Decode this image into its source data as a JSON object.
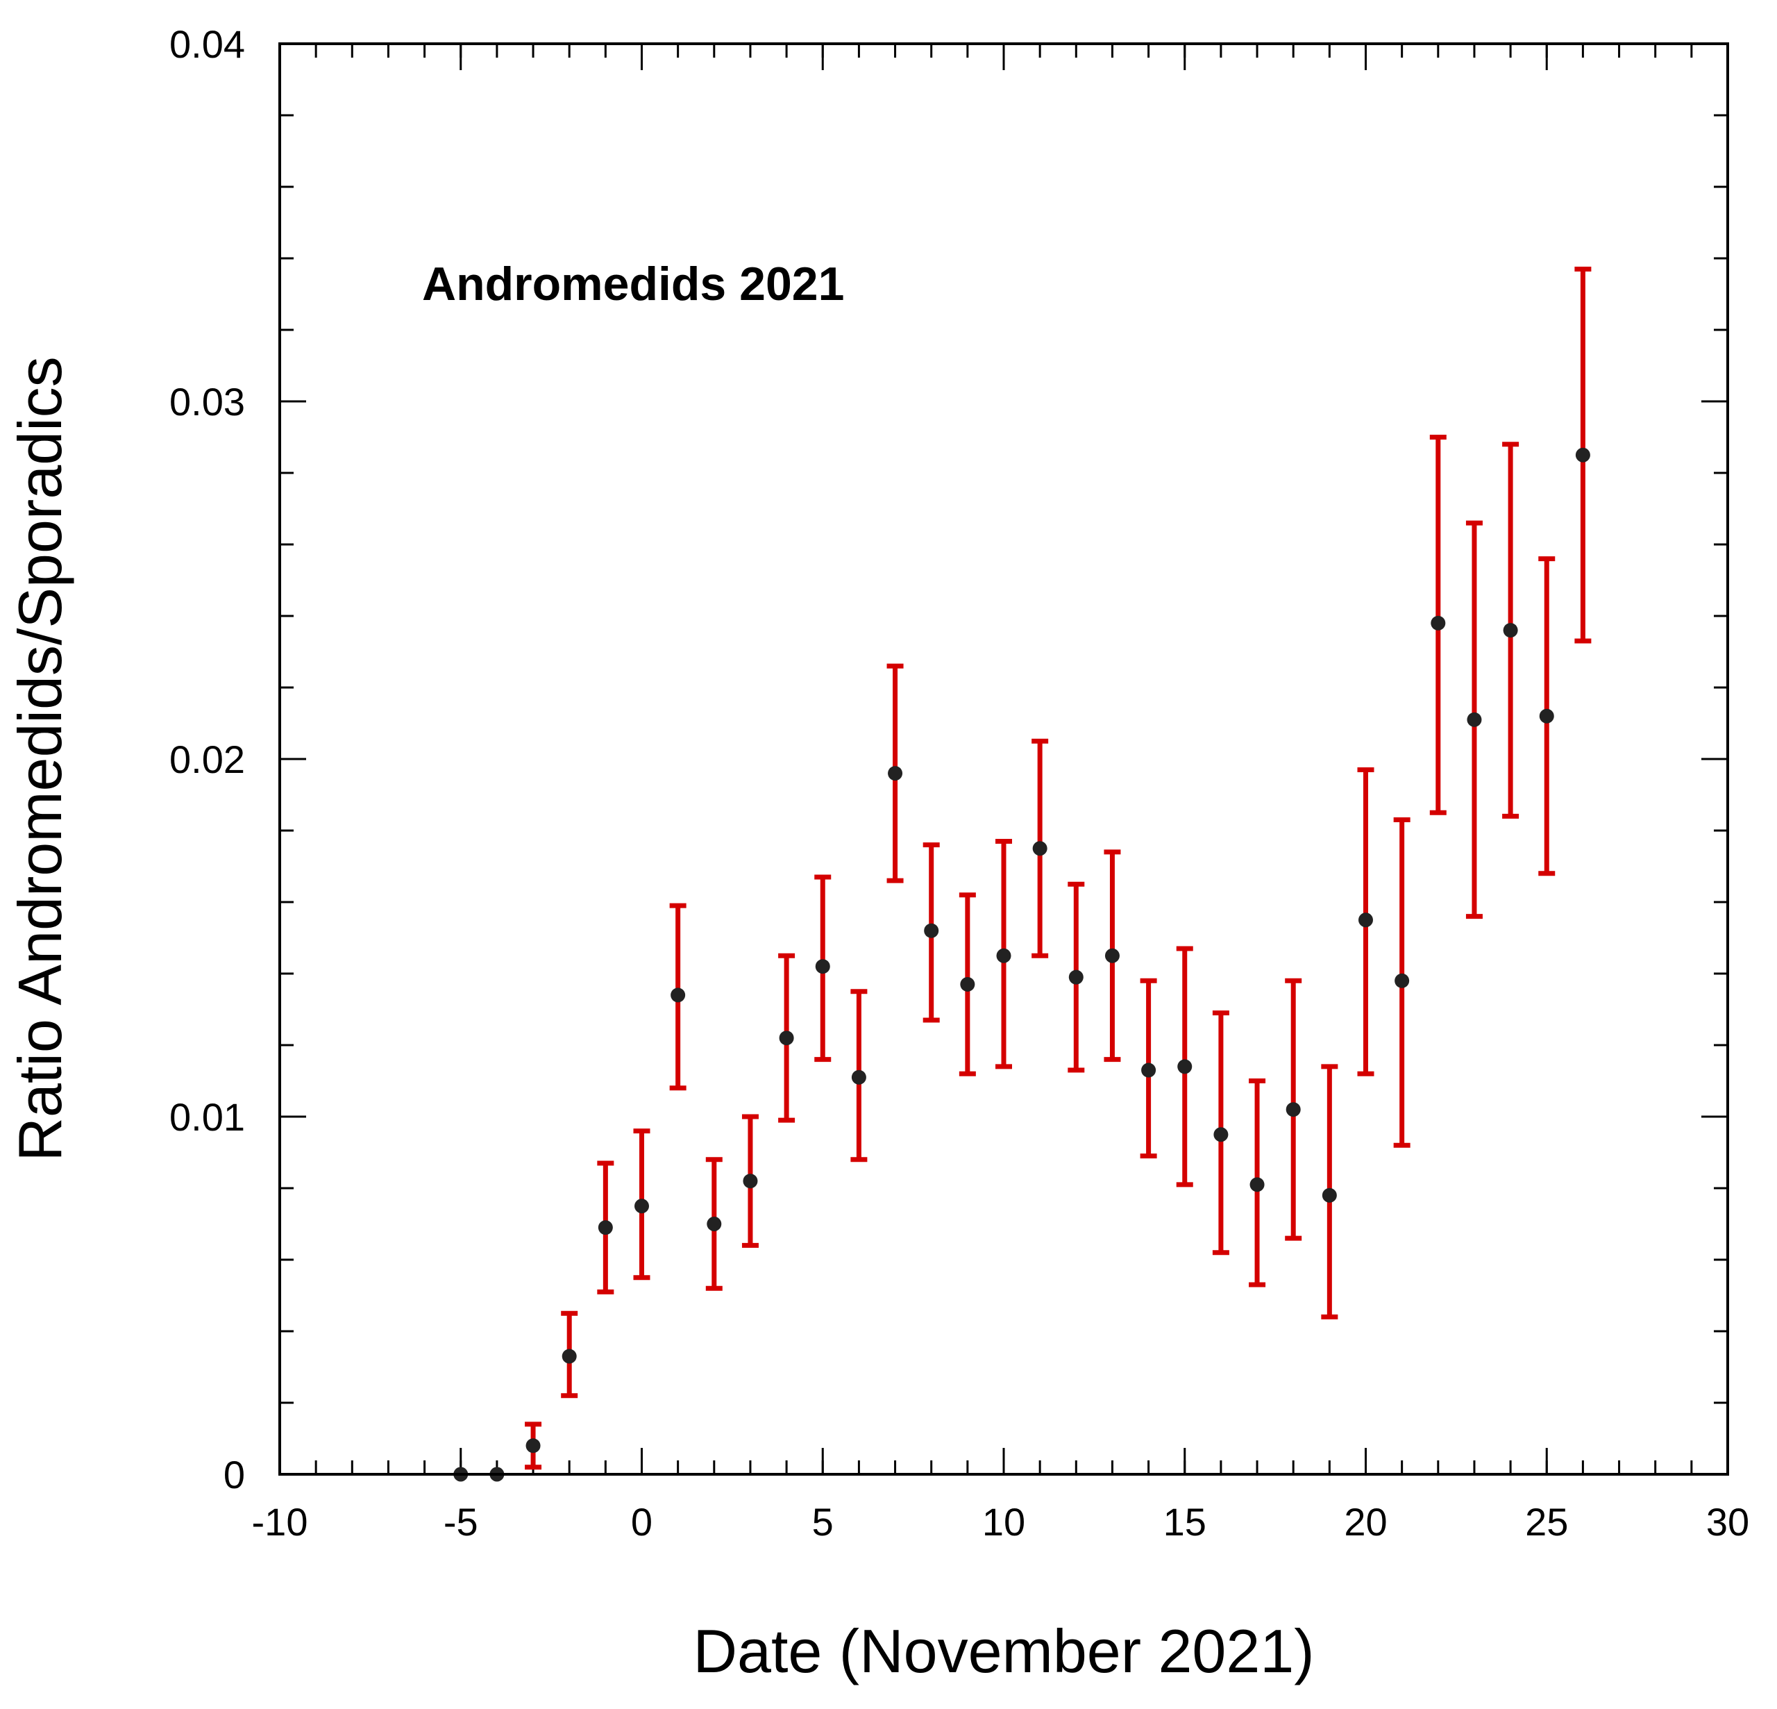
{
  "chart_data": {
    "type": "scatter",
    "title": "",
    "annotation": "Andromedids 2021",
    "xlabel": "Date (November 2021)",
    "ylabel": "Ratio Andromedids/Sporadics",
    "xlim": [
      -10,
      30
    ],
    "ylim": [
      0,
      0.04
    ],
    "x_ticks": [
      -10,
      -5,
      0,
      5,
      10,
      15,
      20,
      25,
      30
    ],
    "x_tick_labels": [
      "-10",
      "-5",
      "0",
      "5",
      "10",
      "15",
      "20",
      "25",
      "30"
    ],
    "y_ticks": [
      0,
      0.01,
      0.02,
      0.03,
      0.04
    ],
    "y_tick_labels": [
      "0",
      "0.01",
      "0.02",
      "0.03",
      "0.04"
    ],
    "x_minor_step": 1,
    "y_minor_step": 0.002,
    "grid": false,
    "legend": "none",
    "colors": {
      "marker": "#222222",
      "error_bar": "#d40000",
      "axes": "#000000"
    },
    "series": [
      {
        "points": [
          {
            "x": -5,
            "y": 0.0,
            "low": null,
            "high": null
          },
          {
            "x": -4,
            "y": 0.0,
            "low": null,
            "high": null
          },
          {
            "x": -3,
            "y": 0.0008,
            "low": 0.0002,
            "high": 0.0014
          },
          {
            "x": -2,
            "y": 0.0033,
            "low": 0.0022,
            "high": 0.0045
          },
          {
            "x": -1,
            "y": 0.0069,
            "low": 0.0051,
            "high": 0.0087
          },
          {
            "x": 0,
            "y": 0.0075,
            "low": 0.0055,
            "high": 0.0096
          },
          {
            "x": 1,
            "y": 0.0134,
            "low": 0.0108,
            "high": 0.0159
          },
          {
            "x": 2,
            "y": 0.007,
            "low": 0.0052,
            "high": 0.0088
          },
          {
            "x": 3,
            "y": 0.0082,
            "low": 0.0064,
            "high": 0.01
          },
          {
            "x": 4,
            "y": 0.0122,
            "low": 0.0099,
            "high": 0.0145
          },
          {
            "x": 5,
            "y": 0.0142,
            "low": 0.0116,
            "high": 0.0167
          },
          {
            "x": 6,
            "y": 0.0111,
            "low": 0.0088,
            "high": 0.0135
          },
          {
            "x": 7,
            "y": 0.0196,
            "low": 0.0166,
            "high": 0.0226
          },
          {
            "x": 8,
            "y": 0.0152,
            "low": 0.0127,
            "high": 0.0176
          },
          {
            "x": 9,
            "y": 0.0137,
            "low": 0.0112,
            "high": 0.0162
          },
          {
            "x": 10,
            "y": 0.0145,
            "low": 0.0114,
            "high": 0.0177
          },
          {
            "x": 11,
            "y": 0.0175,
            "low": 0.0145,
            "high": 0.0205
          },
          {
            "x": 12,
            "y": 0.0139,
            "low": 0.0113,
            "high": 0.0165
          },
          {
            "x": 13,
            "y": 0.0145,
            "low": 0.0116,
            "high": 0.0174
          },
          {
            "x": 14,
            "y": 0.0113,
            "low": 0.0089,
            "high": 0.0138
          },
          {
            "x": 15,
            "y": 0.0114,
            "low": 0.0081,
            "high": 0.0147
          },
          {
            "x": 16,
            "y": 0.0095,
            "low": 0.0062,
            "high": 0.0129
          },
          {
            "x": 17,
            "y": 0.0081,
            "low": 0.0053,
            "high": 0.011
          },
          {
            "x": 18,
            "y": 0.0102,
            "low": 0.0066,
            "high": 0.0138
          },
          {
            "x": 19,
            "y": 0.0078,
            "low": 0.0044,
            "high": 0.0114
          },
          {
            "x": 20,
            "y": 0.0155,
            "low": 0.0112,
            "high": 0.0197
          },
          {
            "x": 21,
            "y": 0.0138,
            "low": 0.0092,
            "high": 0.0183
          },
          {
            "x": 22,
            "y": 0.0238,
            "low": 0.0185,
            "high": 0.029
          },
          {
            "x": 23,
            "y": 0.0211,
            "low": 0.0156,
            "high": 0.0266
          },
          {
            "x": 24,
            "y": 0.0236,
            "low": 0.0184,
            "high": 0.0288
          },
          {
            "x": 25,
            "y": 0.0212,
            "low": 0.0168,
            "high": 0.0256
          },
          {
            "x": 26,
            "y": 0.0285,
            "low": 0.0233,
            "high": 0.0337
          }
        ]
      }
    ]
  }
}
